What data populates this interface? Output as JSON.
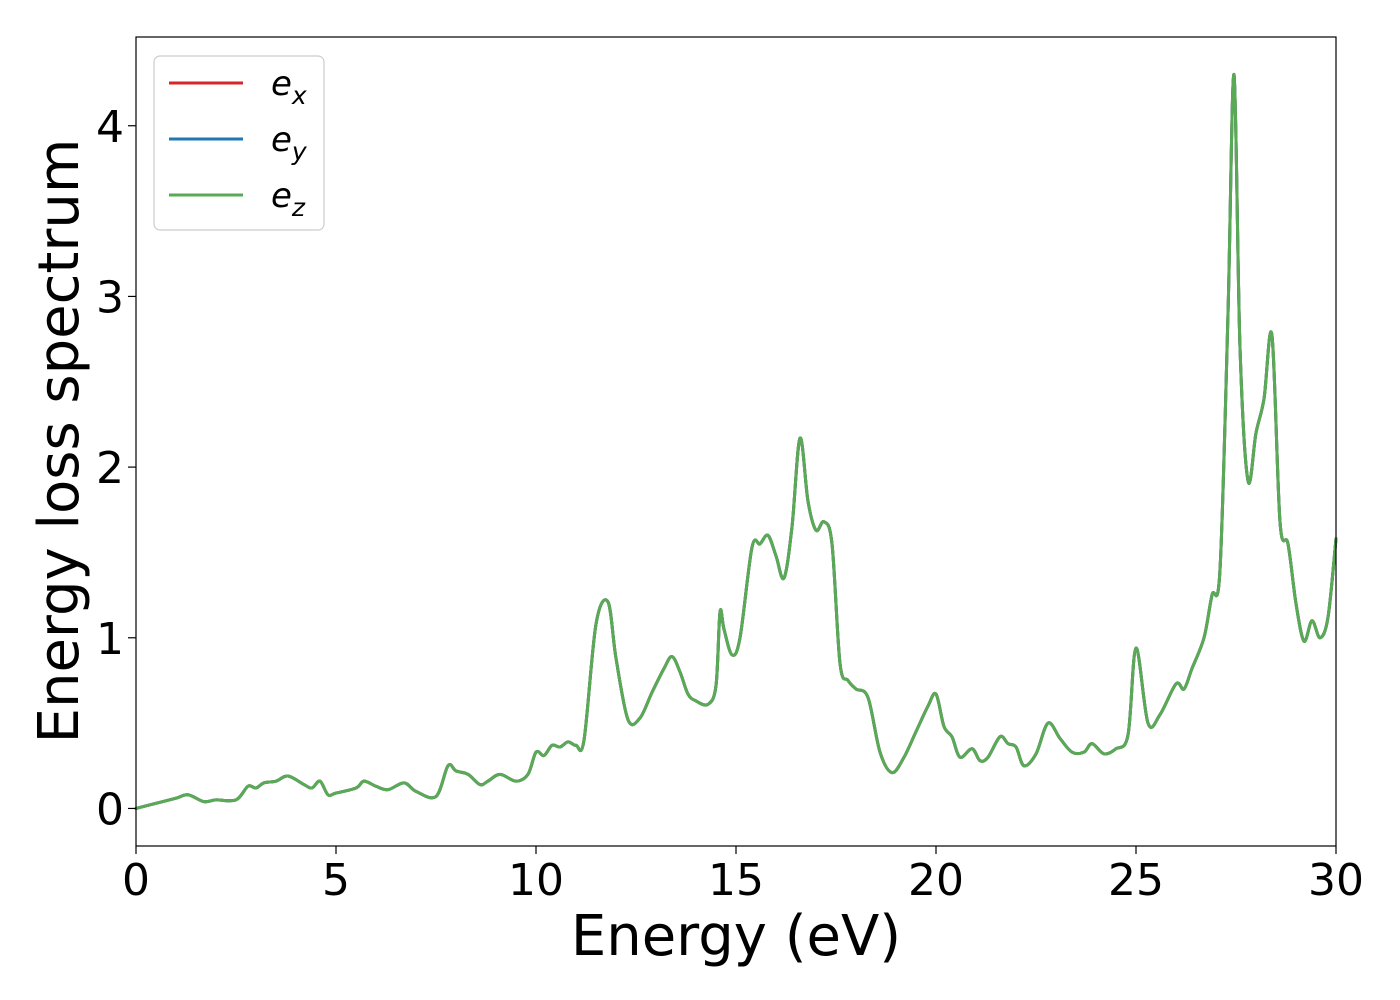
{
  "chart_data": {
    "type": "line",
    "title": "",
    "xlabel": "Energy (eV)",
    "ylabel": "Energy loss spectrum",
    "xlim": [
      0,
      30
    ],
    "ylim": [
      -0.22,
      4.52
    ],
    "xticks": [
      0,
      5,
      10,
      15,
      20,
      25,
      30
    ],
    "xtick_labels": [
      "0",
      "5",
      "10",
      "15",
      "20",
      "25",
      "30"
    ],
    "yticks": [
      0,
      1,
      2,
      3,
      4
    ],
    "ytick_labels": [
      "0",
      "1",
      "2",
      "3",
      "4"
    ],
    "grid": false,
    "legend_position": "top-left",
    "x": [
      0.0,
      0.5,
      1.0,
      1.3,
      1.7,
      2.0,
      2.5,
      2.8,
      3.0,
      3.2,
      3.5,
      3.8,
      4.2,
      4.4,
      4.6,
      4.8,
      5.0,
      5.5,
      5.7,
      6.0,
      6.3,
      6.7,
      7.0,
      7.5,
      7.8,
      8.0,
      8.3,
      8.6,
      8.8,
      9.1,
      9.5,
      9.8,
      10.0,
      10.2,
      10.4,
      10.6,
      10.8,
      11.0,
      11.2,
      11.5,
      11.8,
      12.0,
      12.3,
      12.6,
      12.9,
      13.2,
      13.4,
      13.6,
      13.8,
      14.0,
      14.3,
      14.5,
      14.6,
      14.7,
      14.9,
      15.1,
      15.4,
      15.6,
      15.8,
      16.0,
      16.2,
      16.4,
      16.6,
      16.8,
      17.0,
      17.2,
      17.4,
      17.6,
      17.8,
      18.0,
      18.3,
      18.6,
      18.9,
      19.2,
      19.5,
      19.8,
      20.0,
      20.2,
      20.4,
      20.6,
      20.9,
      21.1,
      21.3,
      21.6,
      21.8,
      22.0,
      22.2,
      22.5,
      22.8,
      23.1,
      23.4,
      23.7,
      23.9,
      24.2,
      24.5,
      24.8,
      25.0,
      25.3,
      25.6,
      26.0,
      26.2,
      26.4,
      26.7,
      26.9,
      27.1,
      27.3,
      27.45,
      27.6,
      27.8,
      28.0,
      28.2,
      28.4,
      28.6,
      28.8,
      29.0,
      29.2,
      29.4,
      29.6,
      29.8,
      30.0
    ],
    "series": [
      {
        "name": "e_x",
        "color": "#d62728",
        "values": [
          0.0,
          0.03,
          0.06,
          0.08,
          0.04,
          0.05,
          0.05,
          0.13,
          0.12,
          0.15,
          0.16,
          0.19,
          0.14,
          0.12,
          0.16,
          0.08,
          0.09,
          0.12,
          0.16,
          0.13,
          0.11,
          0.15,
          0.1,
          0.07,
          0.25,
          0.22,
          0.2,
          0.14,
          0.16,
          0.2,
          0.16,
          0.2,
          0.33,
          0.31,
          0.37,
          0.36,
          0.39,
          0.37,
          0.4,
          1.08,
          1.21,
          0.88,
          0.52,
          0.53,
          0.68,
          0.82,
          0.89,
          0.8,
          0.67,
          0.63,
          0.61,
          0.72,
          1.15,
          1.05,
          0.9,
          1.0,
          1.53,
          1.55,
          1.6,
          1.48,
          1.35,
          1.65,
          2.17,
          1.8,
          1.63,
          1.68,
          1.55,
          0.85,
          0.75,
          0.7,
          0.65,
          0.33,
          0.21,
          0.3,
          0.45,
          0.6,
          0.67,
          0.48,
          0.42,
          0.3,
          0.35,
          0.28,
          0.3,
          0.42,
          0.38,
          0.36,
          0.25,
          0.32,
          0.5,
          0.41,
          0.33,
          0.33,
          0.38,
          0.32,
          0.35,
          0.43,
          0.94,
          0.5,
          0.55,
          0.73,
          0.7,
          0.82,
          1.0,
          1.25,
          1.4,
          2.9,
          4.3,
          2.7,
          1.92,
          2.2,
          2.4,
          2.77,
          1.68,
          1.55,
          1.2,
          0.98,
          1.1,
          1.0,
          1.12,
          1.58
        ]
      },
      {
        "name": "e_y",
        "color": "#1f77b4",
        "values": [
          0.0,
          0.03,
          0.06,
          0.08,
          0.04,
          0.05,
          0.05,
          0.13,
          0.12,
          0.15,
          0.16,
          0.19,
          0.14,
          0.12,
          0.16,
          0.08,
          0.09,
          0.12,
          0.16,
          0.13,
          0.11,
          0.15,
          0.1,
          0.07,
          0.25,
          0.22,
          0.2,
          0.14,
          0.16,
          0.2,
          0.16,
          0.2,
          0.33,
          0.31,
          0.37,
          0.36,
          0.39,
          0.37,
          0.4,
          1.08,
          1.21,
          0.88,
          0.52,
          0.53,
          0.68,
          0.82,
          0.89,
          0.8,
          0.67,
          0.63,
          0.61,
          0.72,
          1.15,
          1.05,
          0.9,
          1.0,
          1.53,
          1.55,
          1.6,
          1.48,
          1.35,
          1.65,
          2.17,
          1.8,
          1.63,
          1.68,
          1.55,
          0.85,
          0.75,
          0.7,
          0.65,
          0.33,
          0.21,
          0.3,
          0.45,
          0.6,
          0.67,
          0.48,
          0.42,
          0.3,
          0.35,
          0.28,
          0.3,
          0.42,
          0.38,
          0.36,
          0.25,
          0.32,
          0.5,
          0.41,
          0.33,
          0.33,
          0.38,
          0.32,
          0.35,
          0.43,
          0.94,
          0.5,
          0.55,
          0.73,
          0.7,
          0.82,
          1.0,
          1.25,
          1.4,
          2.9,
          4.3,
          2.7,
          1.92,
          2.2,
          2.4,
          2.77,
          1.68,
          1.55,
          1.2,
          0.98,
          1.1,
          1.0,
          1.12,
          1.58
        ]
      },
      {
        "name": "e_z",
        "color": "#5aaa55",
        "values": [
          0.0,
          0.03,
          0.06,
          0.08,
          0.04,
          0.05,
          0.05,
          0.13,
          0.12,
          0.15,
          0.16,
          0.19,
          0.14,
          0.12,
          0.16,
          0.08,
          0.09,
          0.12,
          0.16,
          0.13,
          0.11,
          0.15,
          0.1,
          0.07,
          0.25,
          0.22,
          0.2,
          0.14,
          0.16,
          0.2,
          0.16,
          0.2,
          0.33,
          0.31,
          0.37,
          0.36,
          0.39,
          0.37,
          0.4,
          1.08,
          1.21,
          0.88,
          0.52,
          0.53,
          0.68,
          0.82,
          0.89,
          0.8,
          0.67,
          0.63,
          0.61,
          0.72,
          1.15,
          1.05,
          0.9,
          1.0,
          1.53,
          1.55,
          1.6,
          1.48,
          1.35,
          1.65,
          2.17,
          1.8,
          1.63,
          1.68,
          1.55,
          0.85,
          0.75,
          0.7,
          0.65,
          0.33,
          0.21,
          0.3,
          0.45,
          0.6,
          0.67,
          0.48,
          0.42,
          0.3,
          0.35,
          0.28,
          0.3,
          0.42,
          0.38,
          0.36,
          0.25,
          0.32,
          0.5,
          0.41,
          0.33,
          0.33,
          0.38,
          0.32,
          0.35,
          0.43,
          0.94,
          0.5,
          0.55,
          0.73,
          0.7,
          0.82,
          1.0,
          1.25,
          1.4,
          2.9,
          4.3,
          2.7,
          1.92,
          2.2,
          2.4,
          2.77,
          1.68,
          1.55,
          1.2,
          0.98,
          1.1,
          1.0,
          1.12,
          1.58
        ]
      }
    ],
    "legend": [
      {
        "base": "e",
        "sub": "x",
        "color": "#d62728"
      },
      {
        "base": "e",
        "sub": "y",
        "color": "#1f77b4"
      },
      {
        "base": "e",
        "sub": "z",
        "color": "#5aaa55"
      }
    ]
  }
}
